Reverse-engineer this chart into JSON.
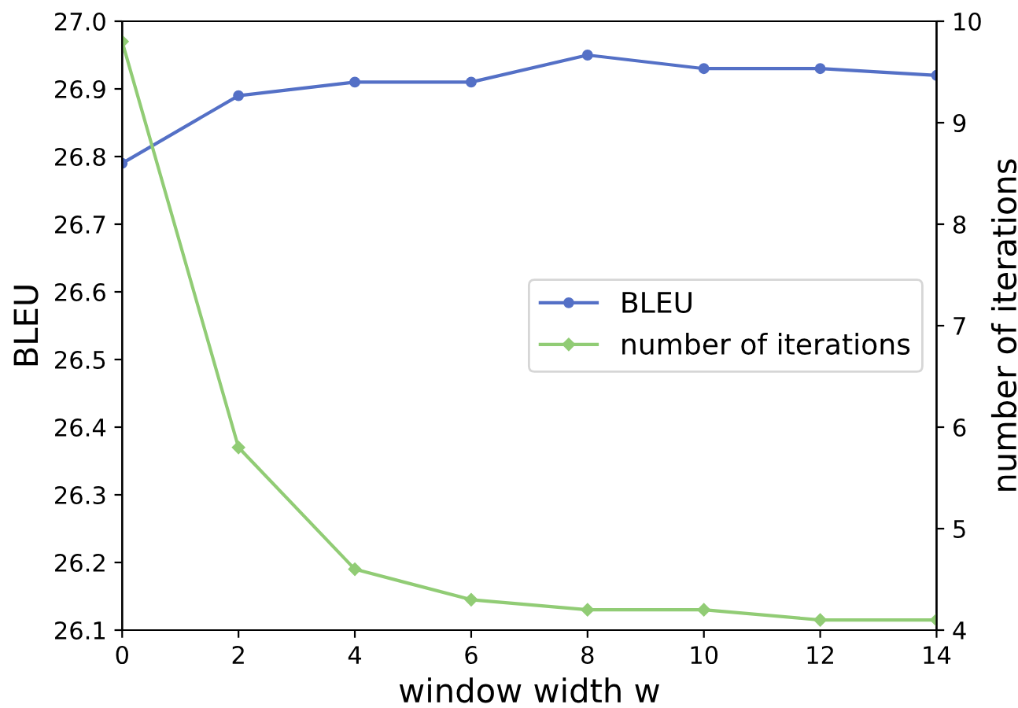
{
  "chart_data": {
    "type": "line",
    "xlabel": "window width w",
    "ylabel": "BLEU",
    "y2label": "number of iterations",
    "x": [
      0,
      2,
      4,
      6,
      8,
      10,
      12,
      14
    ],
    "series": [
      {
        "name": "BLEU",
        "color": "#5470c6",
        "marker": "circle",
        "values": [
          26.79,
          26.89,
          26.91,
          26.91,
          26.95,
          26.93,
          26.93,
          26.92
        ]
      },
      {
        "name": "number of iterations",
        "color": "#91cc75",
        "marker": "diamond",
        "axis": "y2",
        "values": [
          9.8,
          5.8,
          4.6,
          4.3,
          4.2,
          4.2,
          4.1,
          4.1
        ]
      }
    ],
    "xlim": [
      0,
      14
    ],
    "xticks": [
      0,
      2,
      4,
      6,
      8,
      10,
      12,
      14
    ],
    "ylim": [
      26.1,
      27.0
    ],
    "yticks": [
      26.1,
      26.2,
      26.3,
      26.4,
      26.5,
      26.6,
      26.7,
      26.8,
      26.9,
      {
        "value": 27.0,
        "label": "27.0"
      }
    ],
    "y2lim": [
      4,
      10
    ],
    "y2ticks": [
      4,
      5,
      6,
      7,
      8,
      9,
      10
    ],
    "legend": "center right",
    "grid": false
  }
}
